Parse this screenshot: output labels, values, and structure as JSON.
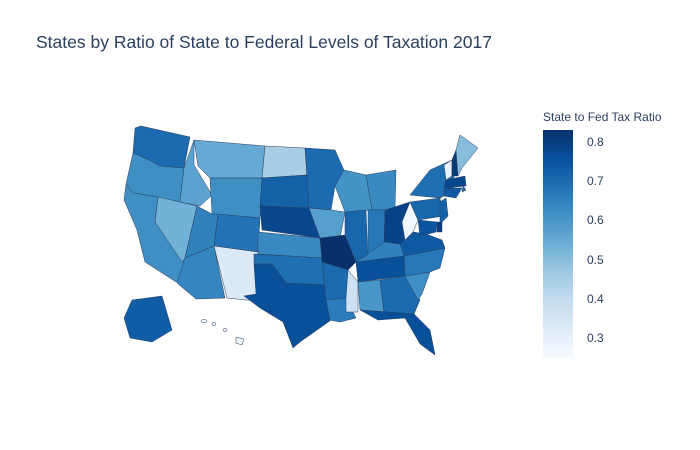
{
  "title": "States by Ratio of State to Federal Levels of Taxation 2017",
  "colorbar": {
    "title": "State to Fed Tax Ratio",
    "min": 0.25,
    "max": 0.83,
    "ticks": [
      "0.3",
      "0.4",
      "0.5",
      "0.6",
      "0.7",
      "0.8"
    ],
    "tick_values": [
      0.3,
      0.4,
      0.5,
      0.6,
      0.7,
      0.8
    ],
    "colorscale": [
      "#f7fbff",
      "#deebf7",
      "#c6dbef",
      "#9ecae1",
      "#6baed6",
      "#4292c6",
      "#2171b5",
      "#08519c",
      "#08306b"
    ]
  },
  "state_values": {
    "WA": 0.7,
    "OR": 0.62,
    "CA": 0.62,
    "NV": 0.53,
    "ID": 0.57,
    "MT": 0.55,
    "WY": 0.62,
    "UT": 0.65,
    "AZ": 0.64,
    "CO": 0.68,
    "NM": 0.33,
    "ND": 0.45,
    "SD": 0.72,
    "NE": 0.78,
    "KS": 0.63,
    "OK": 0.69,
    "TX": 0.76,
    "MN": 0.7,
    "IA": 0.58,
    "MO": 0.83,
    "AR": 0.7,
    "LA": 0.66,
    "WI": 0.61,
    "IL": 0.71,
    "MI": 0.63,
    "IN": 0.67,
    "OH": 0.79,
    "KY": 0.65,
    "TN": 0.76,
    "MS": 0.37,
    "AL": 0.6,
    "GA": 0.7,
    "FL": 0.76,
    "SC": 0.62,
    "NC": 0.67,
    "VA": 0.74,
    "WV": 0.27,
    "PA": 0.71,
    "NY": 0.69,
    "VT": 0.29,
    "NH": 0.81,
    "ME": 0.5,
    "MA": 0.78,
    "RI": 0.7,
    "CT": 0.74,
    "NJ": 0.72,
    "DE": 0.8,
    "MD": 0.75,
    "AK": 0.73,
    "HI": 0.27
  }
}
